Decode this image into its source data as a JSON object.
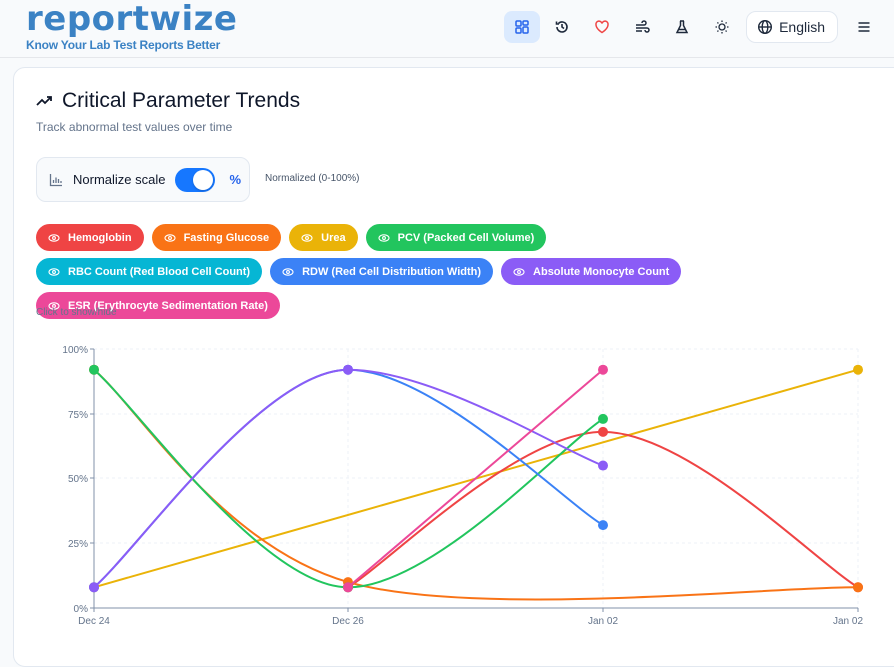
{
  "header": {
    "logo": "reportwize",
    "tagline": "Know Your Lab Test Reports Better",
    "nav_icons": [
      "dashboard-icon",
      "history-icon",
      "heart-icon",
      "wind-icon",
      "flask-icon",
      "sun-icon"
    ],
    "language": "English",
    "menu_icon": "menu-icon"
  },
  "card": {
    "title": "Critical Parameter Trends",
    "subtitle": "Track abnormal test values over time",
    "normalize_label": "Normalize scale",
    "normalize_on": true,
    "percent_symbol": "%",
    "normalize_note": "Normalized (0-100%)",
    "hint": "Click to show/hide"
  },
  "chips": [
    {
      "label": "Hemoglobin",
      "color": "#ef4444"
    },
    {
      "label": "Fasting Glucose",
      "color": "#f97316"
    },
    {
      "label": "Urea",
      "color": "#eab308"
    },
    {
      "label": "PCV (Packed Cell Volume)",
      "color": "#22c55e"
    },
    {
      "label": "RBC Count (Red Blood Cell Count)",
      "color": "#06b6d4"
    },
    {
      "label": "RDW (Red Cell Distribution Width)",
      "color": "#3b82f6"
    },
    {
      "label": "Absolute Monocyte Count",
      "color": "#8b5cf6"
    },
    {
      "label": "ESR (Erythrocyte Sedimentation Rate)",
      "color": "#ec4899"
    }
  ],
  "chart_data": {
    "type": "line",
    "title": "Critical Parameter Trends",
    "xlabel": "",
    "ylabel": "",
    "x": [
      "Dec 24",
      "Dec 26",
      "Jan 02",
      "Jan 02"
    ],
    "y_ticks": [
      "0%",
      "25%",
      "50%",
      "75%",
      "100%"
    ],
    "ylim": [
      0,
      100
    ],
    "grid": true,
    "series": [
      {
        "name": "Hemoglobin",
        "color": "#ef4444",
        "values": [
          null,
          8,
          68,
          8
        ]
      },
      {
        "name": "Fasting Glucose",
        "color": "#f97316",
        "values": [
          92,
          10,
          null,
          8
        ]
      },
      {
        "name": "Urea",
        "color": "#eab308",
        "values": [
          8,
          null,
          null,
          92
        ]
      },
      {
        "name": "PCV (Packed Cell Volume)",
        "color": "#22c55e",
        "values": [
          92,
          8,
          73,
          null
        ]
      },
      {
        "name": "RBC Count (Red Blood Cell Count)",
        "color": "#06b6d4",
        "values": [
          null,
          null,
          null,
          null
        ]
      },
      {
        "name": "RDW (Red Cell Distribution Width)",
        "color": "#3b82f6",
        "values": [
          8,
          92,
          32,
          null
        ]
      },
      {
        "name": "Absolute Monocyte Count",
        "color": "#8b5cf6",
        "values": [
          8,
          92,
          55,
          null
        ]
      },
      {
        "name": "ESR (Erythrocyte Sedimentation Rate)",
        "color": "#ec4899",
        "values": [
          null,
          8,
          92,
          null
        ]
      }
    ]
  }
}
